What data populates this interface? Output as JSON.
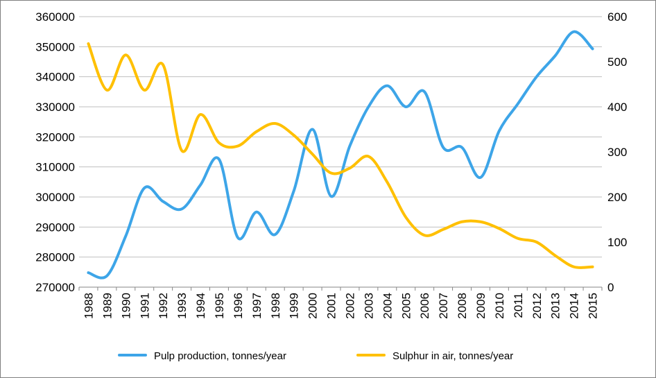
{
  "chart_data": {
    "type": "line",
    "x": [
      "1988",
      "1989",
      "1990",
      "1991",
      "1992",
      "1993",
      "1994",
      "1995",
      "1996",
      "1997",
      "1998",
      "1999",
      "2000",
      "2001",
      "2002",
      "2003",
      "2004",
      "2005",
      "2006",
      "2007",
      "2008",
      "2009",
      "2010",
      "2011",
      "2012",
      "2013",
      "2014",
      "2015"
    ],
    "y_left": {
      "ylim": [
        270000,
        360000
      ],
      "ticks": [
        270000,
        280000,
        290000,
        300000,
        310000,
        320000,
        330000,
        340000,
        350000,
        360000
      ]
    },
    "y_right": {
      "ylim": [
        0,
        600
      ],
      "ticks": [
        0,
        100,
        200,
        300,
        400,
        500,
        600
      ]
    },
    "grid": true,
    "legend": "bottom",
    "series": [
      {
        "name": "Pulp production, tonnes/year",
        "axis": "left",
        "color": "#3DA5E8",
        "values": [
          274800,
          273800,
          287000,
          303000,
          298500,
          296000,
          304000,
          312500,
          286500,
          295000,
          287500,
          302000,
          322500,
          300200,
          317000,
          330000,
          337000,
          330000,
          335000,
          316500,
          316500,
          306500,
          322000,
          331000,
          340000,
          347000,
          355000,
          349300
        ]
      },
      {
        "name": "Sulphur in air, tonnes/year",
        "axis": "right",
        "color": "#FFC000",
        "values": [
          540,
          437,
          515,
          437,
          493,
          303,
          383,
          320,
          313,
          345,
          363,
          337,
          295,
          253,
          264,
          290,
          233,
          155,
          115,
          128,
          145,
          145,
          130,
          108,
          100,
          70,
          45,
          45
        ]
      }
    ]
  }
}
